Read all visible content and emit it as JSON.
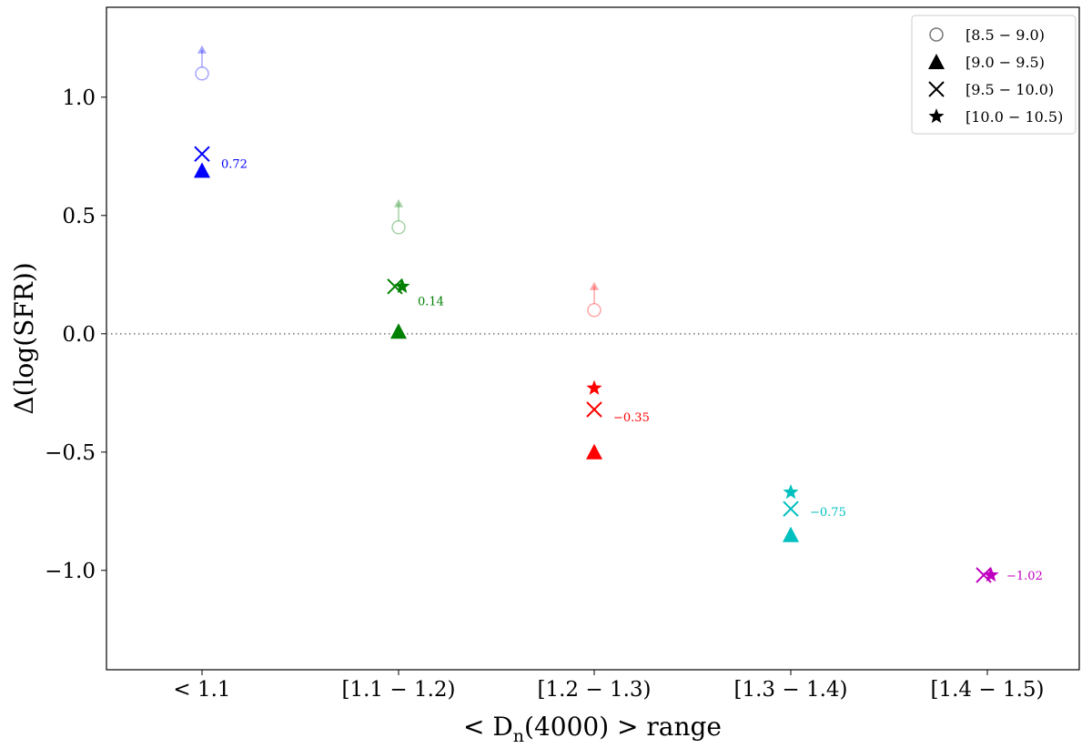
{
  "chart_data": {
    "type": "scatter",
    "xlabel": "< D_n(4000) >  range",
    "ylabel": "Δ(log(SFR))",
    "xlabel_parts": {
      "pre": "< D",
      "sub": "n",
      "post": "(4000) >  range"
    },
    "categories": [
      "< 1.1",
      "[1.1 − 1.2)",
      "[1.2 − 1.3)",
      "[1.3 − 1.4)",
      "[1.4 − 1.5)"
    ],
    "ylim": [
      -1.42,
      1.38
    ],
    "yticks": [
      1.0,
      0.5,
      0.0,
      -0.5,
      -1.0
    ],
    "ytick_labels": [
      "1.0",
      "0.5",
      "0.0",
      "−0.5",
      "−1.0"
    ],
    "reference_line": {
      "y": 0.0,
      "style": "dotted"
    },
    "legend": {
      "placement": "top-right",
      "entries": [
        {
          "marker": "circle",
          "label": "[8.5 − 9.0)"
        },
        {
          "marker": "triangle",
          "label": "[9.0 − 9.5)"
        },
        {
          "marker": "x",
          "label": "[9.5 − 10.0)"
        },
        {
          "marker": "star",
          "label": "[10.0 − 10.5)"
        }
      ]
    },
    "bins": [
      {
        "category": "< 1.1",
        "color": "#0000ff",
        "points": [
          {
            "marker": "circle",
            "y": 1.1,
            "lower_limit": true,
            "faded": true
          },
          {
            "marker": "x",
            "y": 0.76
          },
          {
            "marker": "triangle",
            "y": 0.69
          }
        ],
        "mean": 0.72,
        "mean_label": "0.72"
      },
      {
        "category": "[1.1 − 1.2)",
        "color": "#008000",
        "points": [
          {
            "marker": "circle",
            "y": 0.45,
            "lower_limit": true,
            "faded": true
          },
          {
            "marker": "x",
            "y": 0.2
          },
          {
            "marker": "star",
            "y": 0.2
          },
          {
            "marker": "triangle",
            "y": 0.01
          }
        ],
        "mean": 0.14,
        "mean_label": "0.14"
      },
      {
        "category": "[1.2 − 1.3)",
        "color": "#ff0000",
        "points": [
          {
            "marker": "circle",
            "y": 0.1,
            "lower_limit": true,
            "faded": true
          },
          {
            "marker": "star",
            "y": -0.23
          },
          {
            "marker": "x",
            "y": -0.32
          },
          {
            "marker": "triangle",
            "y": -0.5
          }
        ],
        "mean": -0.35,
        "mean_label": "−0.35"
      },
      {
        "category": "[1.3 − 1.4)",
        "color": "#00bfbf",
        "points": [
          {
            "marker": "star",
            "y": -0.67
          },
          {
            "marker": "x",
            "y": -0.74
          },
          {
            "marker": "triangle",
            "y": -0.85
          }
        ],
        "mean": -0.75,
        "mean_label": "−0.75"
      },
      {
        "category": "[1.4 − 1.5)",
        "color": "#bf00bf",
        "points": [
          {
            "marker": "x",
            "y": -1.02
          },
          {
            "marker": "star",
            "y": -1.02
          }
        ],
        "mean": -1.02,
        "mean_label": "−1.02"
      }
    ]
  }
}
